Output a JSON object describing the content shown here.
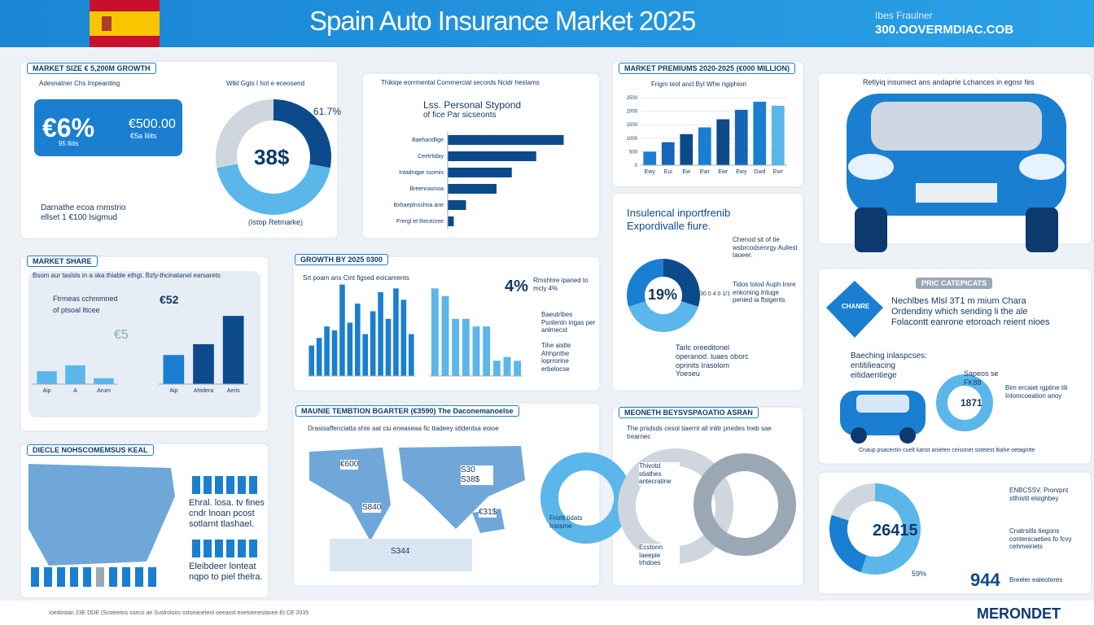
{
  "header": {
    "title": "Spain Auto Insurance Market 2025",
    "contact_name": "Ibes Fraulner",
    "contact_url": "300.OOVERMDIAC.COB"
  },
  "market_size": {
    "heading": "MARKET SIZE € 5,200M GROWTH",
    "legend_a": "Adesnatner Chs Impeanting",
    "legend_b": "Wtkl Ggts I hot e eceosend",
    "stat_1": "€6%",
    "stat_1_sub": "95 lliits",
    "stat_2": "€500.00",
    "stat_2_sub": "€5a lliits",
    "caption": "Darnathe ecoa rnmstrio ellset 1 €100 lsigmud",
    "donut": {
      "type": "donut",
      "center_label": "38$",
      "corner_label": "61.7%",
      "caption": "(Istop Retmarke)",
      "values": [
        28,
        44,
        28
      ],
      "colors": [
        "#0d4a8c",
        "#5bb6ea",
        "#cfd6de"
      ]
    }
  },
  "segments": {
    "heading": "Thikiqe eorrmental Commercial secords Ncidr hestams",
    "title": "Lss. Personal Stypond",
    "subtitle": "of fice Par sicseonts",
    "chart": {
      "type": "hbar",
      "categories": [
        "Baehandlige",
        "Ceetrtiday",
        "Intadnqpe ssomis",
        "Breennasnoa",
        "Bxhaeplnsshna ane",
        "Frergl et Rececree"
      ],
      "values": [
        38,
        29,
        21,
        16,
        6,
        2
      ],
      "color": "#0d4a8c"
    }
  },
  "premiums": {
    "heading": "MARKET PREMIUMS 2020-2025 (€000 MILLION)",
    "subtitle": "Frigm teol ancl Byl Whe rigiphion",
    "chart": {
      "type": "bar",
      "categories": [
        "Ewy",
        "Eui",
        "Ew",
        "Ewr",
        "Ewr",
        "Ewy",
        "Gwd",
        "Ewr"
      ],
      "values": [
        500,
        850,
        1150,
        1400,
        1700,
        2050,
        2350,
        2200
      ],
      "colors": [
        "#1a7fd0",
        "#1565b8",
        "#0d4a8c",
        "#1a7fd0",
        "#0d4a8c",
        "#1565b8",
        "#1a7fd0",
        "#5bb6ea"
      ],
      "ylim": [
        0,
        2500
      ],
      "yticks": [
        0,
        500,
        1000,
        1500,
        2000,
        2500
      ]
    }
  },
  "car_caption": "Retlyiq insumect ans andaprie Lchances in egosr fes",
  "market_share": {
    "heading": "MARKET SHARE",
    "subtitle": "Bsom aur taslsls in a ska thiable ethgt. Bzly-thcinatanel earsarets",
    "badge_a": "Ftrmeas cchmmned",
    "badge_a_sub": "of ptsoal lticee",
    "badge_b": "€52",
    "badge_c": "€5",
    "chart_a": {
      "type": "bar",
      "categories": [
        "Aip",
        "A",
        "Arum"
      ],
      "values": [
        22,
        32,
        10
      ],
      "color": "#5bb6ea"
    },
    "chart_b": {
      "type": "bar",
      "categories": [
        "Aip",
        "Ahtdera",
        "Aeris"
      ],
      "values": [
        35,
        48,
        82
      ],
      "colors": [
        "#1a7fd0",
        "#0d4a8c",
        "#0d4a8c"
      ]
    }
  },
  "growth": {
    "heading": "GROWTH BY 2025 0300",
    "subtitle": "Srt poam ans Cint figsed eoicaments",
    "stat": "4%",
    "stat_text": "Rmshhre ipaned to mcly 4%",
    "note_a": "Baeutrlbes Psnlentn ingas per anlmecst",
    "note_b": "Tihe aistle Ahhpnthe ioprrorine erbelocse",
    "chart_a": {
      "type": "bar",
      "values": [
        8,
        10,
        13,
        12,
        24,
        14,
        19,
        11,
        17,
        22,
        15,
        23,
        20,
        11
      ],
      "color": "#1a7fd0"
    },
    "chart_b": {
      "type": "bar",
      "values": [
        23,
        21,
        15,
        15,
        13,
        13,
        4,
        5,
        4
      ],
      "color": "#5bb6ea"
    }
  },
  "insurance": {
    "title": "Insulencal inportfrenib Expordivalle fiure.",
    "note_a": "Chenod sit of tie wsbrcodsenrgy Auliest taoeer.",
    "note_b": "Tidos tolod Auph Irsre enkoning Intuge penied ia ftsigents",
    "note_c": "Tarlc oreeditonel operanod. luaes oborc oprinits Irasolom Yoeseu",
    "pct_label": "30 0 4 0 1/1",
    "donut": {
      "type": "donut",
      "center_label": "19%",
      "values": [
        30,
        40,
        30
      ],
      "colors": [
        "#0d4a8c",
        "#5bb6ea",
        "#1a7fd0"
      ]
    }
  },
  "pricing": {
    "badge": "PRIC CATEPICATS",
    "shield": "CHANRE",
    "text": "Nechlbes Mlsl 3T1 m mium Chara Ordendiny which sending li the ale Folacontt eanrone etoroach reient nioes",
    "sub": "Baeching inlaspcses: entitilieacing eitidaentiege",
    "stat": "1871",
    "stat_top": "Sapeos se FK88",
    "note": "Bim ercaiet rgptine tili Inlomcoeation anoy",
    "footnote": "Cnaup psacectin cuelt kanst anieten ceisonet sstetest ltiahe oetagntte"
  },
  "distribution": {
    "heading": "DIECLE NOHSCOMEMSUS KEAL",
    "text_a": "Ehral. losa. tv fines cndr lnoan pcost sotlarnt tlashael.",
    "text_b": "Eleibdeer lonteat nqpo to piel thelra."
  },
  "world": {
    "heading": "MAUNIE TEMBTION BGARTER (€3590) The Daconemanoelse",
    "subtitle": "Drasisaffenciatta shte aat ciu eneaseaa fic ttadeey stldentsa eoioe",
    "label_a": "€600",
    "label_b": "S30 S38$",
    "label_c": "S840",
    "label_d": "€31$",
    "label_e": "S344"
  },
  "forecast": {
    "heading": "MEONETH BEYSVSPAOATIO ASRAN",
    "subtitle": "The prsdsds cesol tiaernt all inlitr pnedes Ineb sae trearnec",
    "note_a": "Thivotd stiathes antecratine",
    "note_b": "Frortt tidats Iciosme",
    "note_c": "Ecstonn Iaeepie trhdoes"
  },
  "bottom_right": {
    "stat_a": "26415",
    "stat_b": "944",
    "note_a": "ENBCSSV. Prorvpnt stlhistit elsighbey",
    "note_b": "Cnatrsitls tiegons contenicaeties fo fcvy cehmeiriets",
    "note_c": "Breeler ealeoteres",
    "label_pct": "59%",
    "donut": {
      "type": "donut",
      "values": [
        55,
        25,
        20
      ],
      "colors": [
        "#5bb6ea",
        "#1a7fd0",
        "#cfd6de"
      ]
    }
  },
  "footer": {
    "brand": "MERONDET",
    "note": "Ioedostan 23E DDE (Scoteetos sseco ae Suslroloos sstseanetenl oeeasst eoetoenestasee Et CE 2035"
  }
}
